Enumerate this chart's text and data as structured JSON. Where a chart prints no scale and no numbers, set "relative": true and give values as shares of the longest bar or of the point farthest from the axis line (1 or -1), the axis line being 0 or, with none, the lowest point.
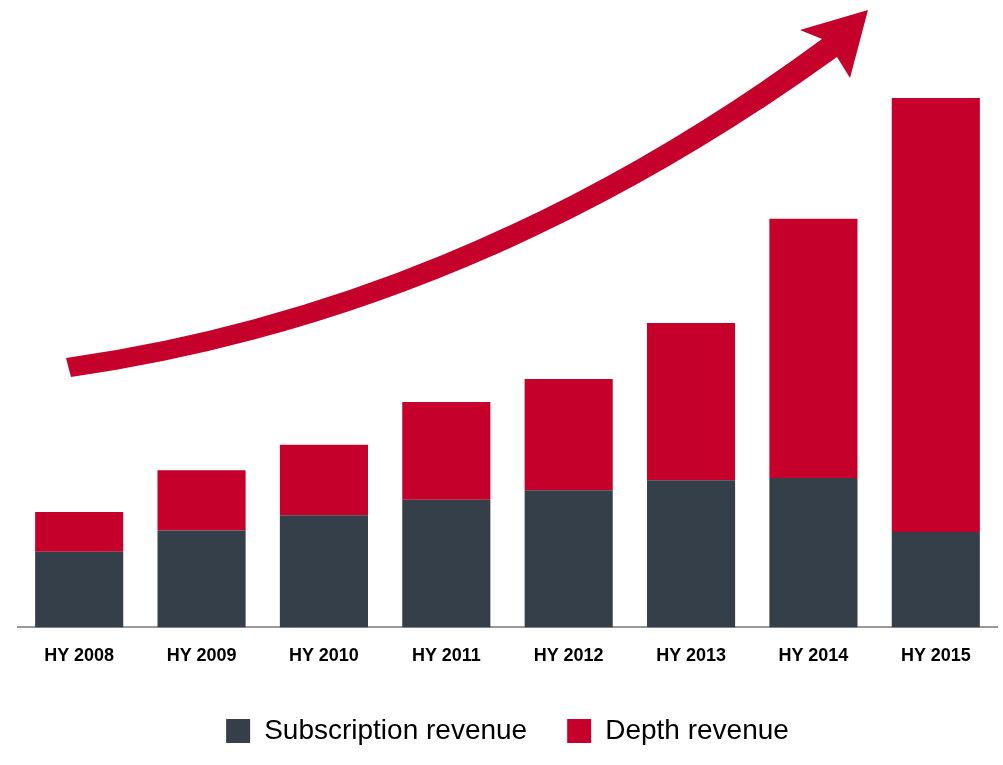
{
  "chart_data": {
    "type": "bar",
    "stacked": true,
    "relative": true,
    "legend": "bottom",
    "categories": [
      "HY 2008",
      "HY 2009",
      "HY 2010",
      "HY 2011",
      "HY 2012",
      "HY 2013",
      "HY 2014",
      "HY 2015"
    ],
    "series": [
      {
        "name": "Subscription revenue",
        "color": "#343f4a",
        "values": [
          0.143,
          0.183,
          0.212,
          0.241,
          0.259,
          0.278,
          0.282,
          0.18
        ]
      },
      {
        "name": "Depth revenue",
        "color": "#c4002b",
        "values": [
          0.075,
          0.114,
          0.133,
          0.185,
          0.21,
          0.297,
          0.49,
          0.82
        ]
      }
    ]
  }
}
